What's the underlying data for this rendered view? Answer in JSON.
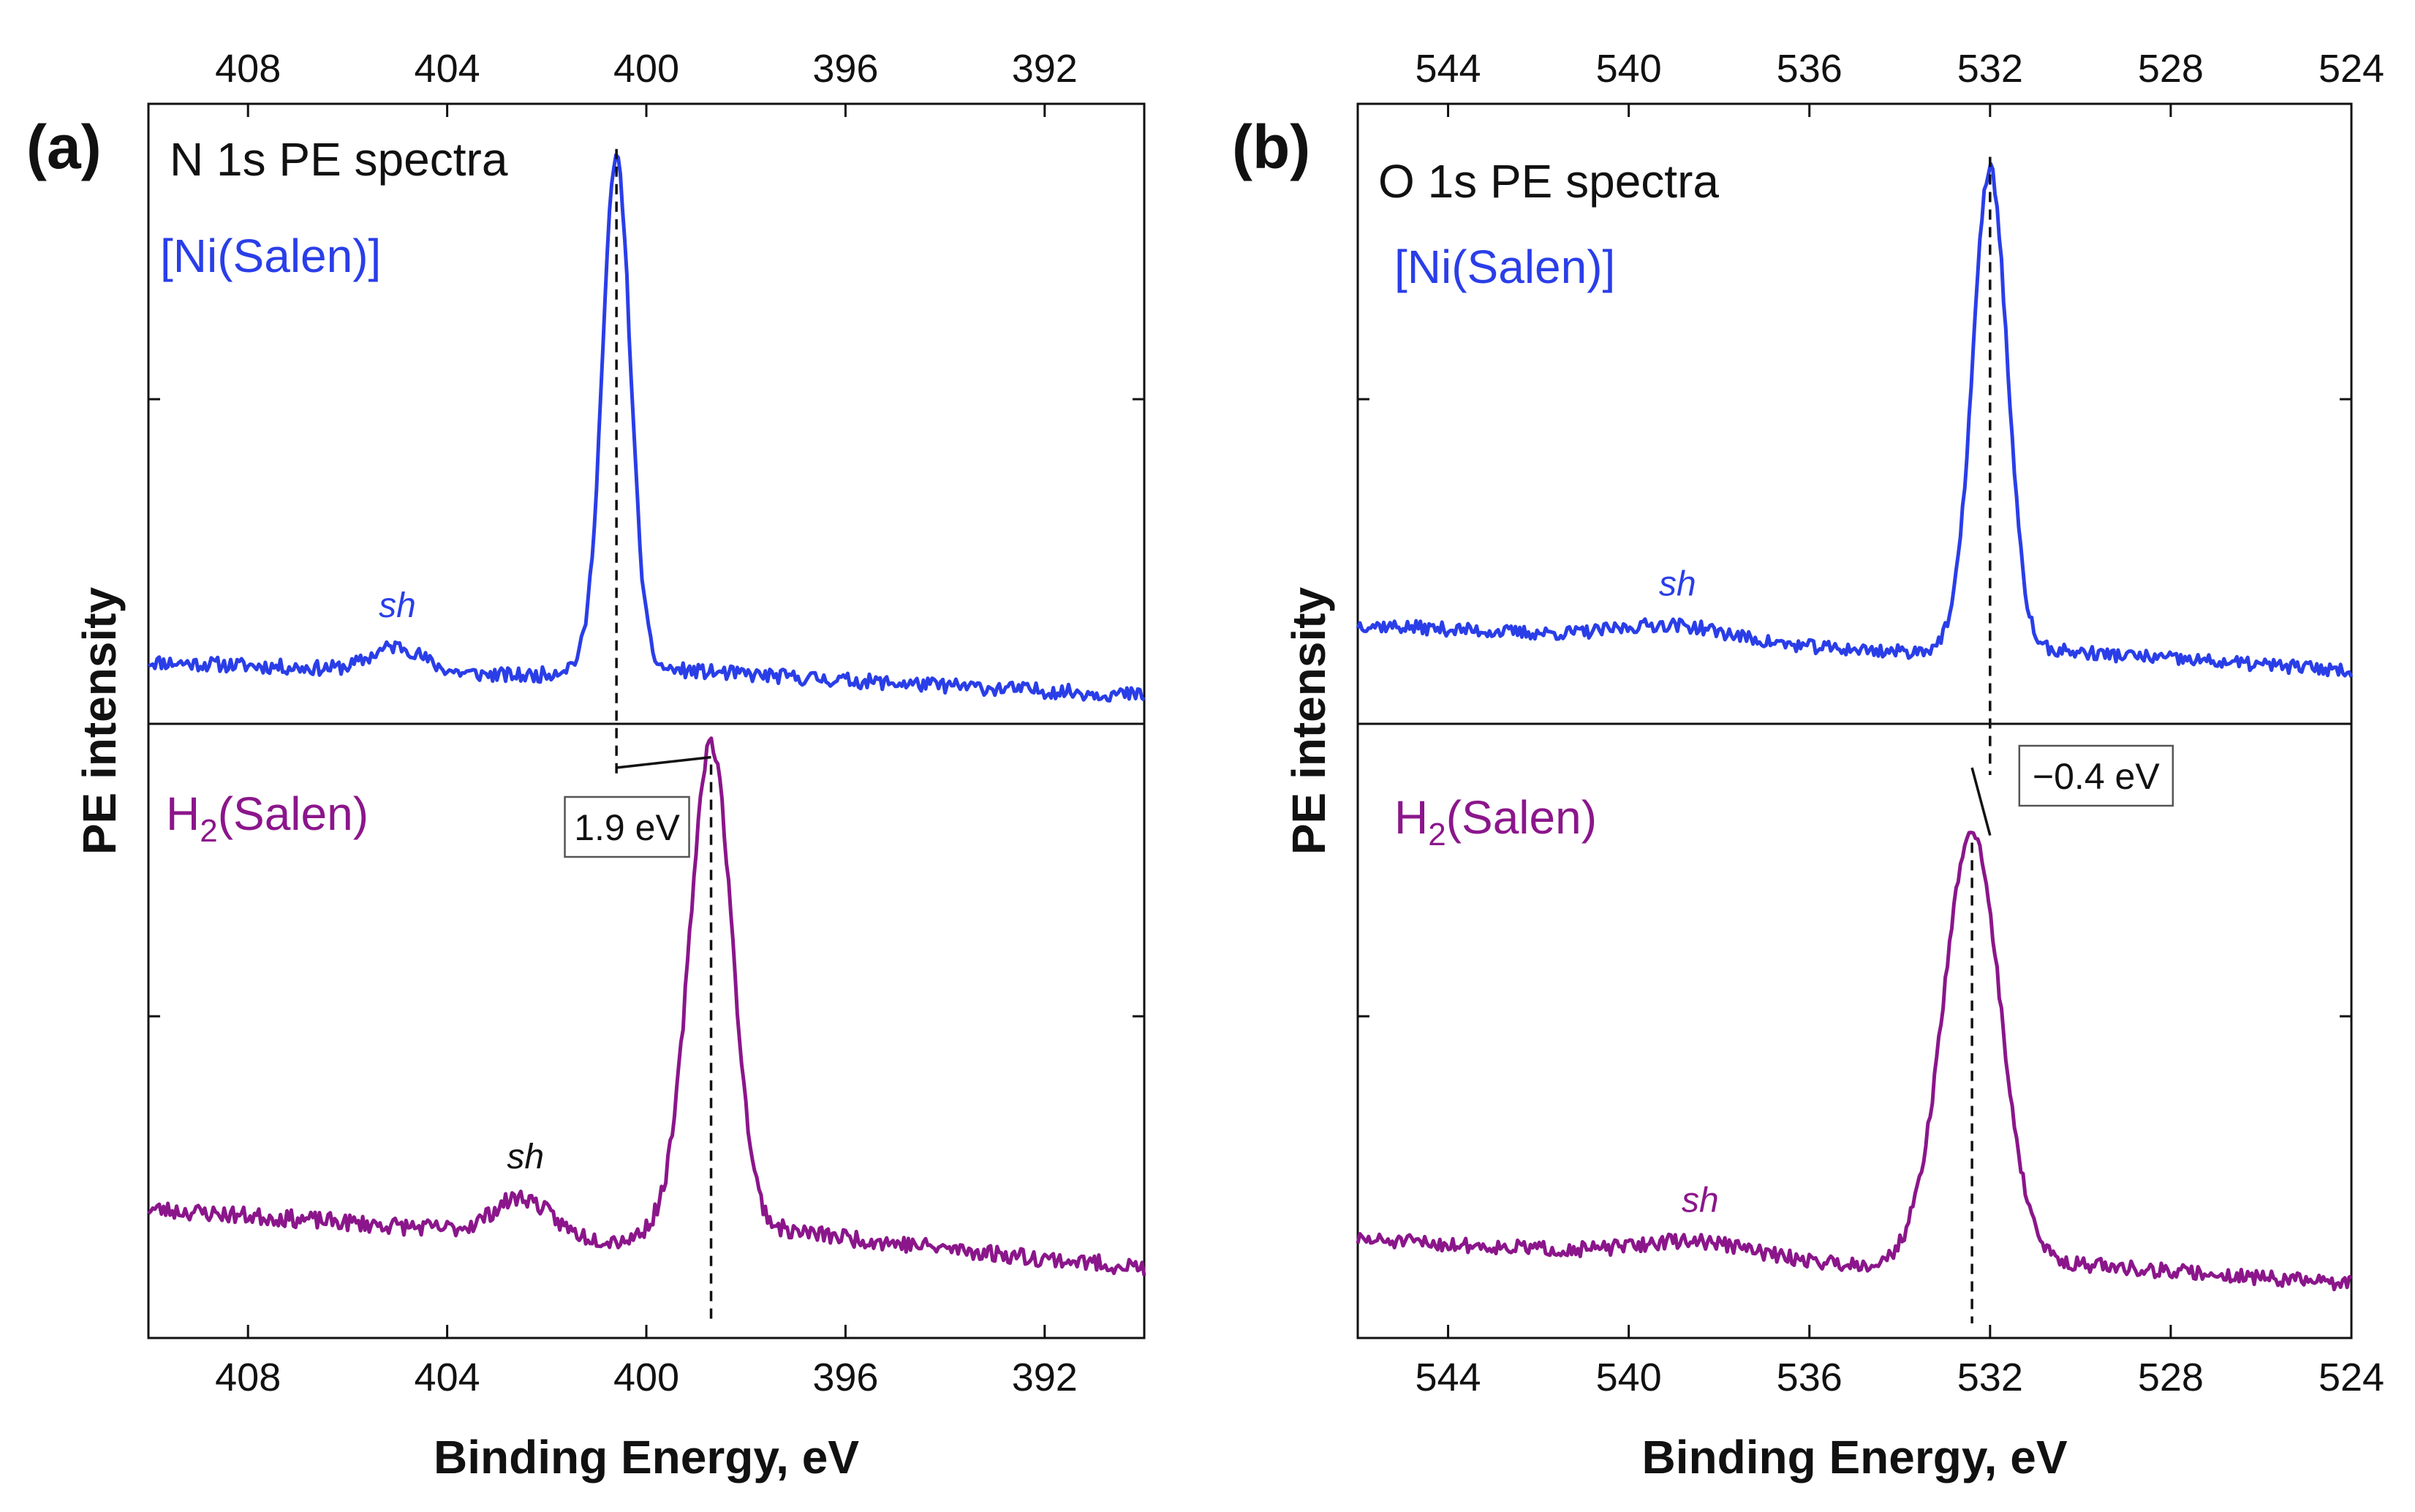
{
  "figure": {
    "colors": {
      "blue": "#2a3ee8",
      "purple": "#8b168b",
      "axis": "#111111"
    }
  },
  "chart_data": [
    {
      "type": "line",
      "panel_label": "(a)",
      "title": "N 1s PE spectra",
      "xlabel": "Binding Energy, eV",
      "ylabel": "PE intensity",
      "xlim": [
        410,
        390
      ],
      "xticks": [
        408,
        404,
        400,
        396,
        392
      ],
      "tick_labels": [
        "408",
        "404",
        "400",
        "396",
        "392"
      ],
      "x_reversed": true,
      "series": [
        {
          "name": "[Ni(Salen)]",
          "color": "#2a3ee8",
          "subpanel": "top",
          "peak": {
            "center": 400.6,
            "height": 0.82,
            "width": 0.28
          },
          "baseline": {
            "start": 0.1,
            "end": 0.04
          },
          "step": {
            "from": 401.7,
            "height": 0.025
          },
          "shoulder": {
            "x": 405.0,
            "label": "sh",
            "height": 0.04,
            "width": 0.5
          },
          "peak_line_x": 400.6,
          "noise": 0.012,
          "seed": 11
        },
        {
          "name": "H2(Salen)",
          "display_name": {
            "main": "H",
            "sub": "2",
            "rest": "(Salen)"
          },
          "color": "#8b168b",
          "subpanel": "bottom",
          "peak": {
            "center": 398.7,
            "height": 0.78,
            "width": 0.42
          },
          "baseline": {
            "start": 0.21,
            "end": 0.1
          },
          "step": {
            "from": 399.9,
            "height": 0.05
          },
          "shoulder": {
            "x": 402.5,
            "label": "sh",
            "label_color": "#111111",
            "height": 0.06,
            "width": 0.55
          },
          "peak_line_x": 398.7,
          "noise": 0.014,
          "seed": 23
        }
      ],
      "shift": {
        "label": "1.9 eV",
        "from_x": 400.6,
        "to_x": 398.7
      }
    },
    {
      "type": "line",
      "panel_label": "(b)",
      "title": "O 1s PE spectra",
      "xlabel": "Binding Energy, eV",
      "ylabel": "PE intensity",
      "xlim": [
        546,
        524
      ],
      "xticks": [
        544,
        540,
        536,
        532,
        528,
        524
      ],
      "tick_labels": [
        "544",
        "540",
        "536",
        "532",
        "528",
        "524"
      ],
      "x_reversed": true,
      "series": [
        {
          "name": "[Ni(Salen)]",
          "color": "#2a3ee8",
          "subpanel": "top",
          "peak": {
            "center": 532.0,
            "height": 0.77,
            "width": 0.38
          },
          "baseline": {
            "start": 0.16,
            "end": 0.08
          },
          "step": {
            "from": 533.2,
            "height": 0.02
          },
          "shoulder": {
            "x": 539.0,
            "label": "sh",
            "height": 0.025,
            "width": 1.2
          },
          "peak_line_x": 532.0,
          "noise": 0.011,
          "seed": 37
        },
        {
          "name": "H2(Salen)",
          "display_name": {
            "main": "H",
            "sub": "2",
            "rest": "(Salen)"
          },
          "color": "#8b168b",
          "subpanel": "bottom",
          "peak": {
            "center": 532.4,
            "height": 0.69,
            "width": 0.62
          },
          "baseline": {
            "start": 0.16,
            "end": 0.08
          },
          "step": {
            "from": 534.0,
            "height": 0.03
          },
          "shoulder": {
            "x": 538.5,
            "label": "sh",
            "height": 0.025,
            "width": 1.2
          },
          "peak_line_x": 532.4,
          "noise": 0.012,
          "seed": 51
        }
      ],
      "shift": {
        "label": "−0.4 eV",
        "from_x": 532.4,
        "to_x": 532.0
      }
    }
  ]
}
